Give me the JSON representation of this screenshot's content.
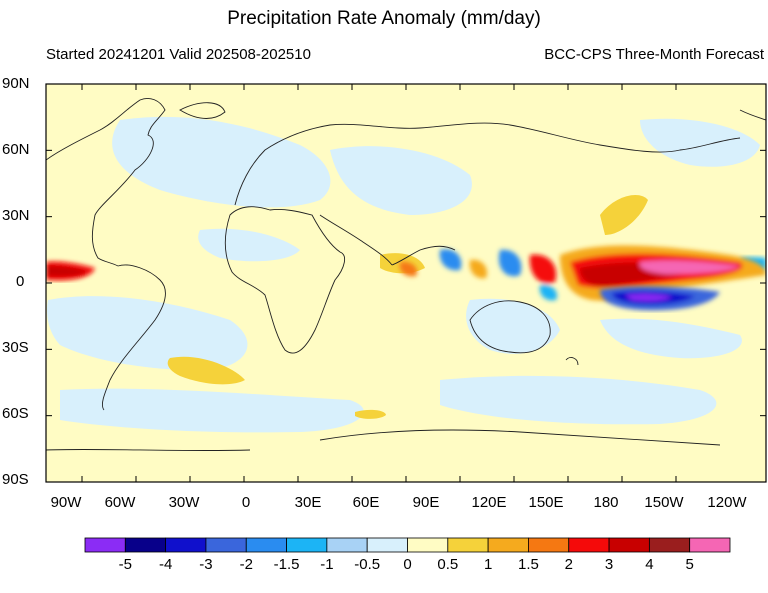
{
  "title": "Precipitation Rate Anomaly (mm/day)",
  "subtitle_left": "Started 20241201  Valid 202508-202510",
  "subtitle_right": "BCC-CPS Three-Month Forecast",
  "map": {
    "lon_range": [
      -110,
      290
    ],
    "lat_range": [
      -90,
      90
    ],
    "background_color": "#fffcc4",
    "lat_ticks": [
      "90N",
      "60N",
      "30N",
      "0",
      "30S",
      "60S",
      "90S"
    ],
    "lon_ticks": [
      "90W",
      "60W",
      "30W",
      "0",
      "30E",
      "60E",
      "90E",
      "120E",
      "150E",
      "180",
      "150W",
      "120W"
    ]
  },
  "colorbar": {
    "colors": [
      "#8b2cf5",
      "#08008a",
      "#1010cc",
      "#3a66dc",
      "#2a8cf0",
      "#1cb4f5",
      "#a8d2f5",
      "#d8f0fc",
      "#fffcc4",
      "#f5d23a",
      "#f5aa1e",
      "#f57812",
      "#f50a0a",
      "#c80000",
      "#9a1e1e",
      "#f566b4"
    ],
    "labels": [
      "-5",
      "-4",
      "-3",
      "-2",
      "-1.5",
      "-1",
      "-0.5",
      "0",
      "0.5",
      "1",
      "1.5",
      "2",
      "3",
      "4",
      "5"
    ]
  }
}
